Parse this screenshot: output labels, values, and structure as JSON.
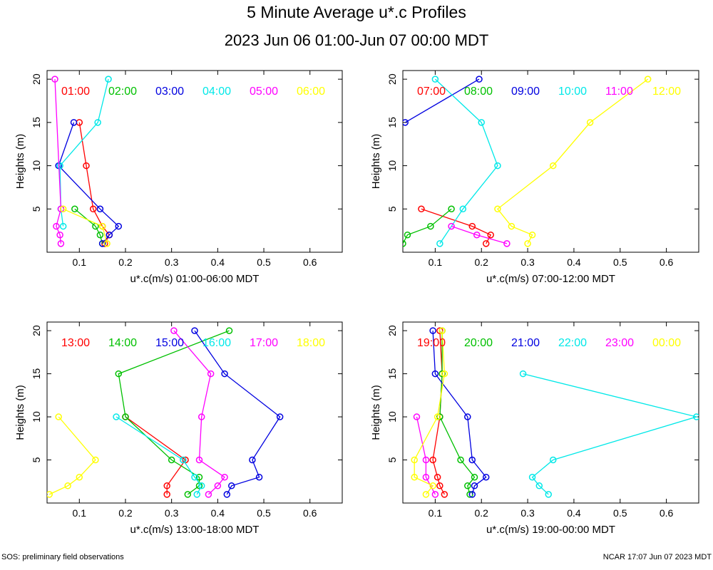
{
  "title": "5 Minute Average u*.c Profiles",
  "subtitle": "2023 Jun 06 01:00-Jun 07 00:00 MDT",
  "footer_left": "SOS: preliminary field observations",
  "footer_right": "NCAR 17:07 Jun 07 2023 MDT",
  "colors": [
    "#ff0000",
    "#00c000",
    "#0000e0",
    "#00e8e8",
    "#ff00ff",
    "#ffff00"
  ],
  "chart_data": [
    {
      "type": "line",
      "xlabel": "u*.c(m/s) 01:00-06:00 MDT",
      "ylabel": "Heights (m)",
      "xlim": [
        0.03,
        0.67
      ],
      "ylim": [
        0,
        21
      ],
      "xticks": [
        "0.1",
        "0.2",
        "0.3",
        "0.4",
        "0.5",
        "0.6"
      ],
      "yticks": [
        "5",
        "10",
        "15",
        "20"
      ],
      "series": [
        {
          "name": "01:00",
          "points": [
            [
              0.155,
              1
            ],
            [
              0.165,
              2
            ],
            [
              0.15,
              3
            ],
            [
              0.13,
              5
            ],
            [
              0.115,
              10
            ],
            [
              0.1,
              15
            ]
          ]
        },
        {
          "name": "02:00",
          "points": [
            [
              0.15,
              1
            ],
            [
              0.145,
              2
            ],
            [
              0.135,
              3
            ],
            [
              0.09,
              5
            ]
          ]
        },
        {
          "name": "03:00",
          "points": [
            [
              0.15,
              1
            ],
            [
              0.165,
              2
            ],
            [
              0.185,
              3
            ],
            [
              0.145,
              5
            ],
            [
              0.055,
              10
            ],
            [
              0.088,
              15
            ]
          ]
        },
        {
          "name": "04:00",
          "points": [
            [
              0.065,
              3
            ],
            [
              0.06,
              5
            ],
            [
              0.058,
              10
            ],
            [
              0.14,
              15
            ],
            [
              0.163,
              20
            ]
          ]
        },
        {
          "name": "05:00",
          "points": [
            [
              0.06,
              1
            ],
            [
              0.058,
              2
            ],
            [
              0.05,
              3
            ],
            [
              0.06,
              5
            ],
            [
              0.047,
              20
            ]
          ]
        },
        {
          "name": "06:00",
          "points": [
            [
              0.16,
              1
            ],
            [
              0.15,
              3
            ],
            [
              0.065,
              5
            ]
          ]
        }
      ]
    },
    {
      "type": "line",
      "xlabel": "u*.c(m/s) 07:00-12:00 MDT",
      "ylabel": "Heights (m)",
      "xlim": [
        0.03,
        0.67
      ],
      "ylim": [
        0,
        21
      ],
      "xticks": [
        "0.1",
        "0.2",
        "0.3",
        "0.4",
        "0.5",
        "0.6"
      ],
      "yticks": [
        "5",
        "10",
        "15",
        "20"
      ],
      "series": [
        {
          "name": "07:00",
          "points": [
            [
              0.21,
              1
            ],
            [
              0.22,
              2
            ],
            [
              0.18,
              3
            ],
            [
              0.07,
              5
            ]
          ]
        },
        {
          "name": "08:00",
          "points": [
            [
              0.03,
              1
            ],
            [
              0.04,
              2
            ],
            [
              0.09,
              3
            ],
            [
              0.135,
              5
            ]
          ]
        },
        {
          "name": "09:00",
          "points": [
            [
              0.035,
              15
            ],
            [
              0.195,
              20
            ]
          ]
        },
        {
          "name": "10:00",
          "points": [
            [
              0.11,
              1
            ],
            [
              0.16,
              5
            ],
            [
              0.235,
              10
            ],
            [
              0.2,
              15
            ],
            [
              0.1,
              20
            ]
          ]
        },
        {
          "name": "11:00",
          "points": [
            [
              0.255,
              1
            ],
            [
              0.19,
              2
            ],
            [
              0.135,
              3
            ]
          ]
        },
        {
          "name": "12:00",
          "points": [
            [
              0.3,
              1
            ],
            [
              0.31,
              2
            ],
            [
              0.265,
              3
            ],
            [
              0.235,
              5
            ],
            [
              0.355,
              10
            ],
            [
              0.435,
              15
            ],
            [
              0.56,
              20
            ]
          ]
        }
      ]
    },
    {
      "type": "line",
      "xlabel": "u*.c(m/s) 13:00-18:00 MDT",
      "ylabel": "Heights (m)",
      "xlim": [
        0.03,
        0.67
      ],
      "ylim": [
        0,
        21
      ],
      "xticks": [
        "0.1",
        "0.2",
        "0.3",
        "0.4",
        "0.5",
        "0.6"
      ],
      "yticks": [
        "5",
        "10",
        "15",
        "20"
      ],
      "series": [
        {
          "name": "13:00",
          "points": [
            [
              0.29,
              1
            ],
            [
              0.29,
              2
            ],
            [
              0.33,
              5
            ],
            [
              0.2,
              10
            ]
          ]
        },
        {
          "name": "14:00",
          "points": [
            [
              0.335,
              1
            ],
            [
              0.36,
              2
            ],
            [
              0.36,
              3
            ],
            [
              0.3,
              5
            ],
            [
              0.2,
              10
            ],
            [
              0.185,
              15
            ],
            [
              0.425,
              20
            ]
          ]
        },
        {
          "name": "15:00",
          "points": [
            [
              0.42,
              1
            ],
            [
              0.43,
              2
            ],
            [
              0.49,
              3
            ],
            [
              0.475,
              5
            ],
            [
              0.535,
              10
            ],
            [
              0.415,
              15
            ],
            [
              0.35,
              20
            ]
          ]
        },
        {
          "name": "16:00",
          "points": [
            [
              0.355,
              1
            ],
            [
              0.365,
              2
            ],
            [
              0.35,
              3
            ],
            [
              0.325,
              5
            ],
            [
              0.18,
              10
            ]
          ]
        },
        {
          "name": "17:00",
          "points": [
            [
              0.38,
              1
            ],
            [
              0.4,
              2
            ],
            [
              0.415,
              3
            ],
            [
              0.36,
              5
            ],
            [
              0.365,
              10
            ],
            [
              0.385,
              15
            ],
            [
              0.305,
              20
            ]
          ]
        },
        {
          "name": "18:00",
          "points": [
            [
              0.035,
              1
            ],
            [
              0.075,
              2
            ],
            [
              0.1,
              3
            ],
            [
              0.135,
              5
            ],
            [
              0.055,
              10
            ]
          ]
        }
      ]
    },
    {
      "type": "line",
      "xlabel": "u*.c(m/s) 19:00-00:00 MDT",
      "ylabel": "Heights (m)",
      "xlim": [
        0.03,
        0.67
      ],
      "ylim": [
        0,
        21
      ],
      "xticks": [
        "0.1",
        "0.2",
        "0.3",
        "0.4",
        "0.5",
        "0.6"
      ],
      "yticks": [
        "5",
        "10",
        "15",
        "20"
      ],
      "series": [
        {
          "name": "19:00",
          "points": [
            [
              0.12,
              1
            ],
            [
              0.11,
              2
            ],
            [
              0.105,
              3
            ],
            [
              0.095,
              5
            ],
            [
              0.11,
              10
            ],
            [
              0.115,
              15
            ],
            [
              0.11,
              20
            ]
          ]
        },
        {
          "name": "20:00",
          "points": [
            [
              0.175,
              1
            ],
            [
              0.17,
              2
            ],
            [
              0.185,
              3
            ],
            [
              0.155,
              5
            ],
            [
              0.11,
              10
            ],
            [
              0.115,
              15
            ],
            [
              0.115,
              20
            ]
          ]
        },
        {
          "name": "21:00",
          "points": [
            [
              0.18,
              1
            ],
            [
              0.185,
              2
            ],
            [
              0.21,
              3
            ],
            [
              0.18,
              5
            ],
            [
              0.17,
              10
            ],
            [
              0.1,
              15
            ],
            [
              0.095,
              20
            ]
          ]
        },
        {
          "name": "22:00",
          "points": [
            [
              0.345,
              1
            ],
            [
              0.325,
              2
            ],
            [
              0.31,
              3
            ],
            [
              0.355,
              5
            ],
            [
              0.665,
              10
            ],
            [
              0.29,
              15
            ]
          ]
        },
        {
          "name": "23:00",
          "points": [
            [
              0.1,
              1
            ],
            [
              0.08,
              3
            ],
            [
              0.08,
              5
            ],
            [
              0.06,
              10
            ]
          ]
        },
        {
          "name": "00:00",
          "points": [
            [
              0.08,
              1
            ],
            [
              0.095,
              2
            ],
            [
              0.055,
              3
            ],
            [
              0.055,
              5
            ],
            [
              0.105,
              10
            ],
            [
              0.12,
              15
            ],
            [
              0.115,
              20
            ]
          ]
        }
      ]
    }
  ]
}
